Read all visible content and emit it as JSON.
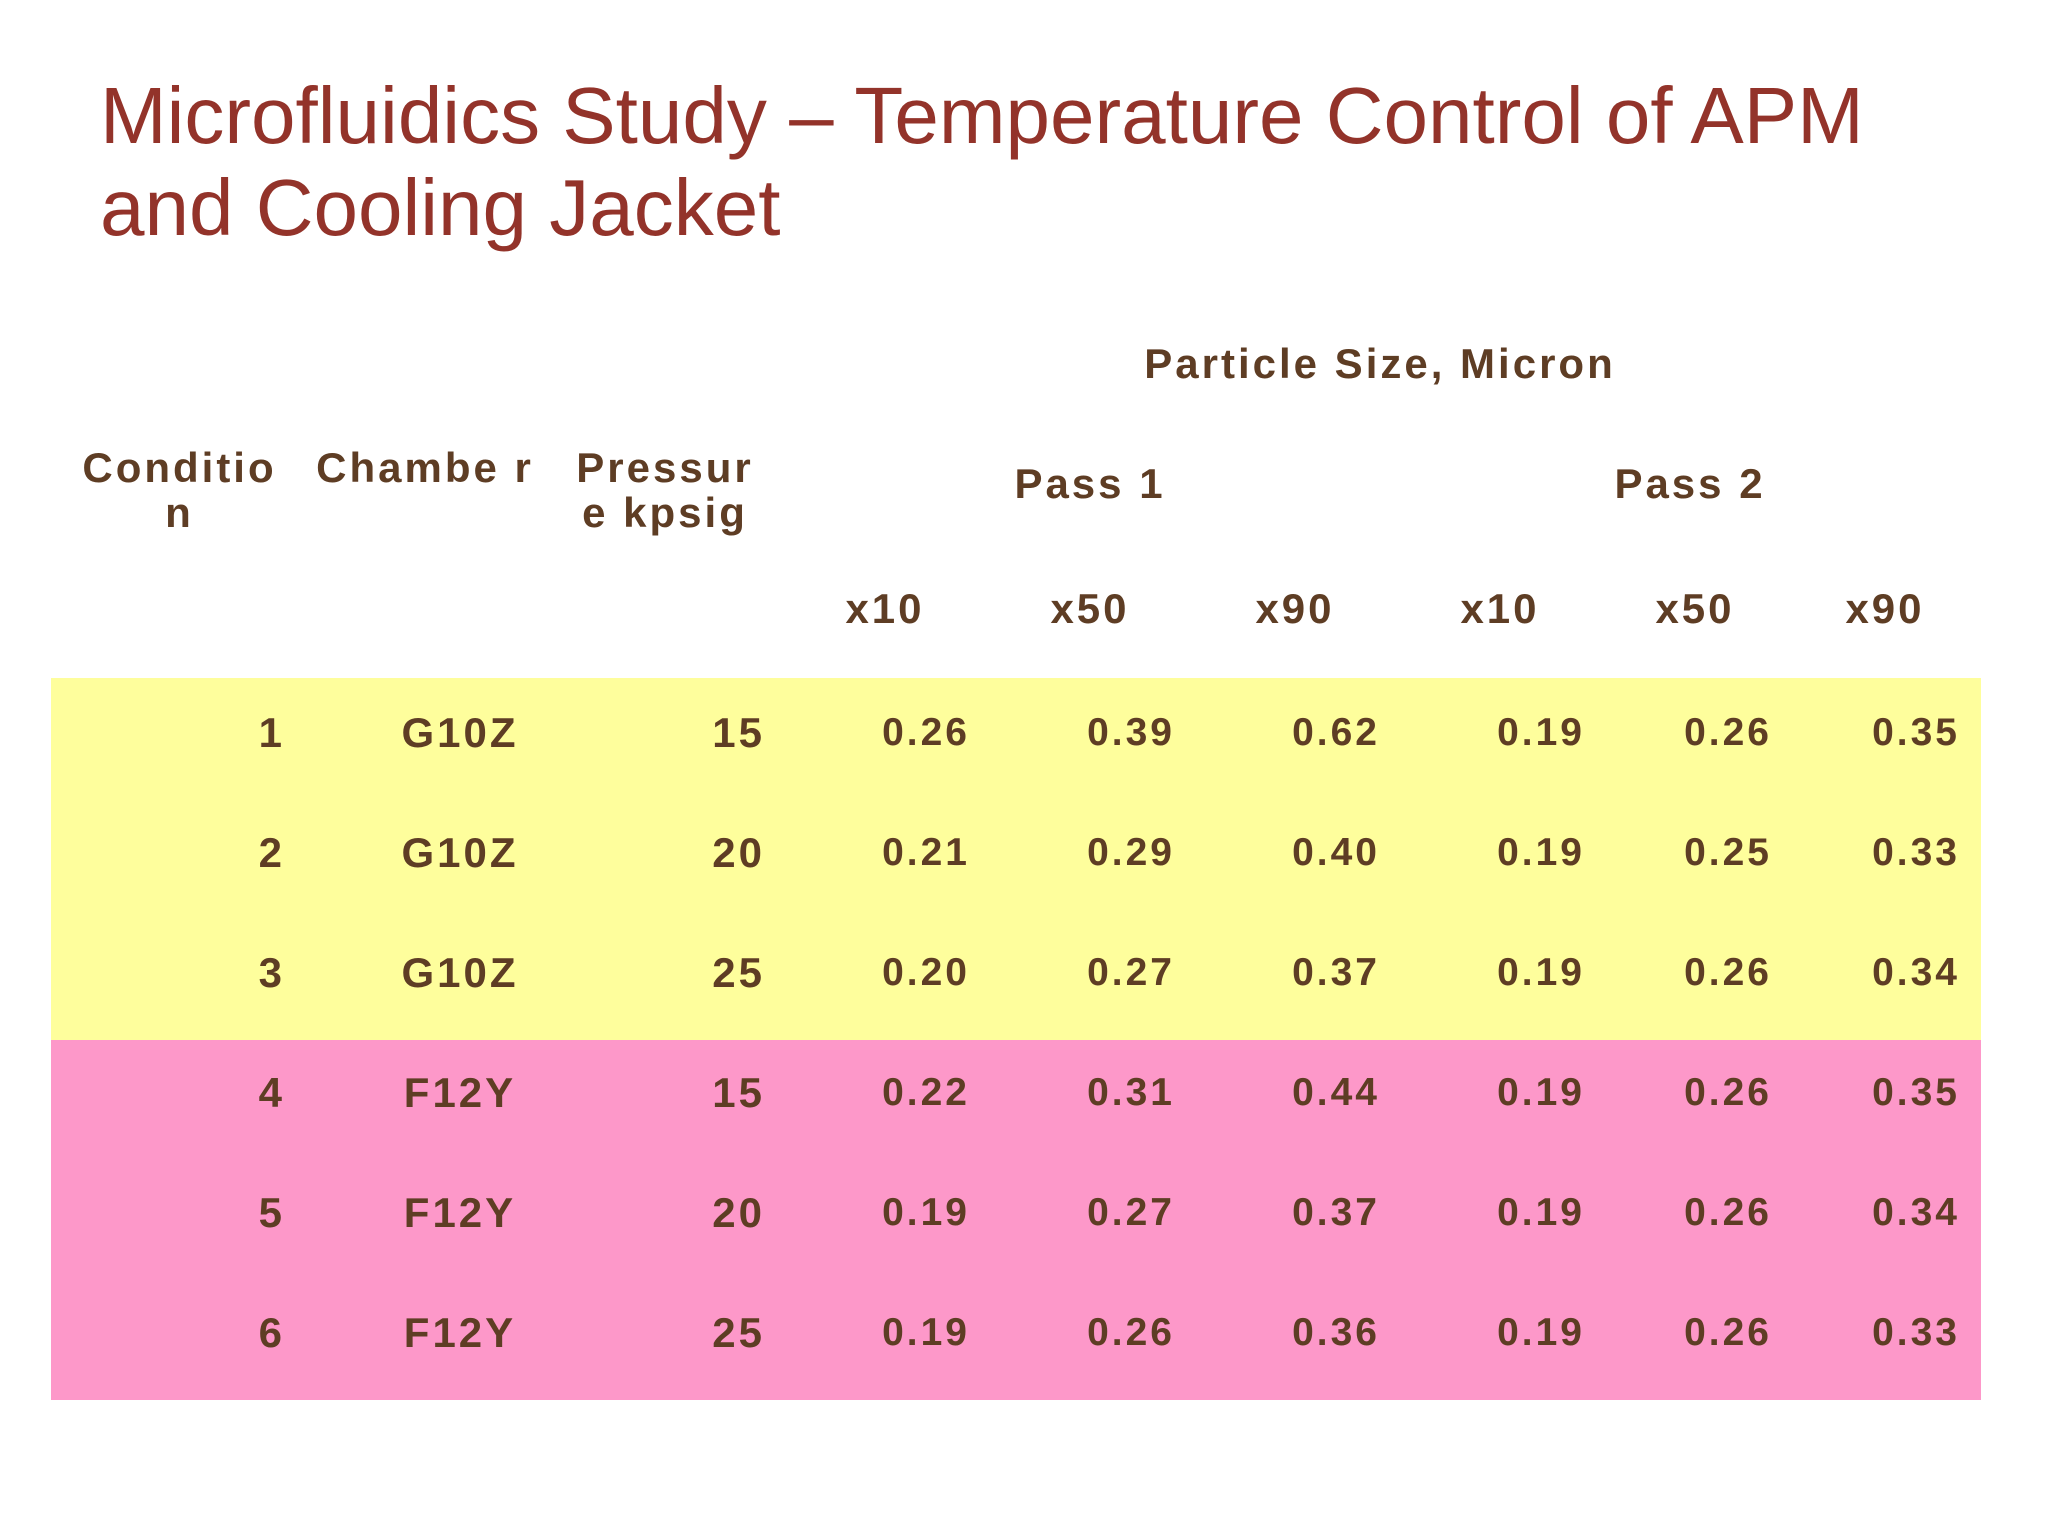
{
  "title": "Microfluidics Study – Temperature Control of APM and Cooling Jacket",
  "table": {
    "group_header": "Particle Size, Micron",
    "columns": {
      "condition": "Conditio n",
      "chamber": "Chambe r",
      "pressure": "Pressur e kpsig"
    },
    "passes": [
      "Pass 1",
      "Pass 2"
    ],
    "subheaders": [
      "x10",
      "x50",
      "x90",
      "x10",
      "x50",
      "x90"
    ],
    "rows": [
      {
        "condition": "1",
        "chamber": "G10Z",
        "pressure": "15",
        "values": [
          "0.26",
          "0.39",
          "0.62",
          "0.19",
          "0.26",
          "0.35"
        ]
      },
      {
        "condition": "2",
        "chamber": "G10Z",
        "pressure": "20",
        "values": [
          "0.21",
          "0.29",
          "0.40",
          "0.19",
          "0.25",
          "0.33"
        ]
      },
      {
        "condition": "3",
        "chamber": "G10Z",
        "pressure": "25",
        "values": [
          "0.20",
          "0.27",
          "0.37",
          "0.19",
          "0.26",
          "0.34"
        ]
      },
      {
        "condition": "4",
        "chamber": "F12Y",
        "pressure": "15",
        "values": [
          "0.22",
          "0.31",
          "0.44",
          "0.19",
          "0.26",
          "0.35"
        ]
      },
      {
        "condition": "5",
        "chamber": "F12Y",
        "pressure": "20",
        "values": [
          "0.19",
          "0.27",
          "0.37",
          "0.19",
          "0.26",
          "0.34"
        ]
      },
      {
        "condition": "6",
        "chamber": "F12Y",
        "pressure": "25",
        "values": [
          "0.19",
          "0.26",
          "0.36",
          "0.19",
          "0.26",
          "0.33"
        ]
      }
    ]
  },
  "colors": {
    "title": "#93332a",
    "text": "#5e3d24",
    "chamber_g10z_band": "#fefe9c",
    "chamber_f12y_band": "#fd98c9"
  }
}
